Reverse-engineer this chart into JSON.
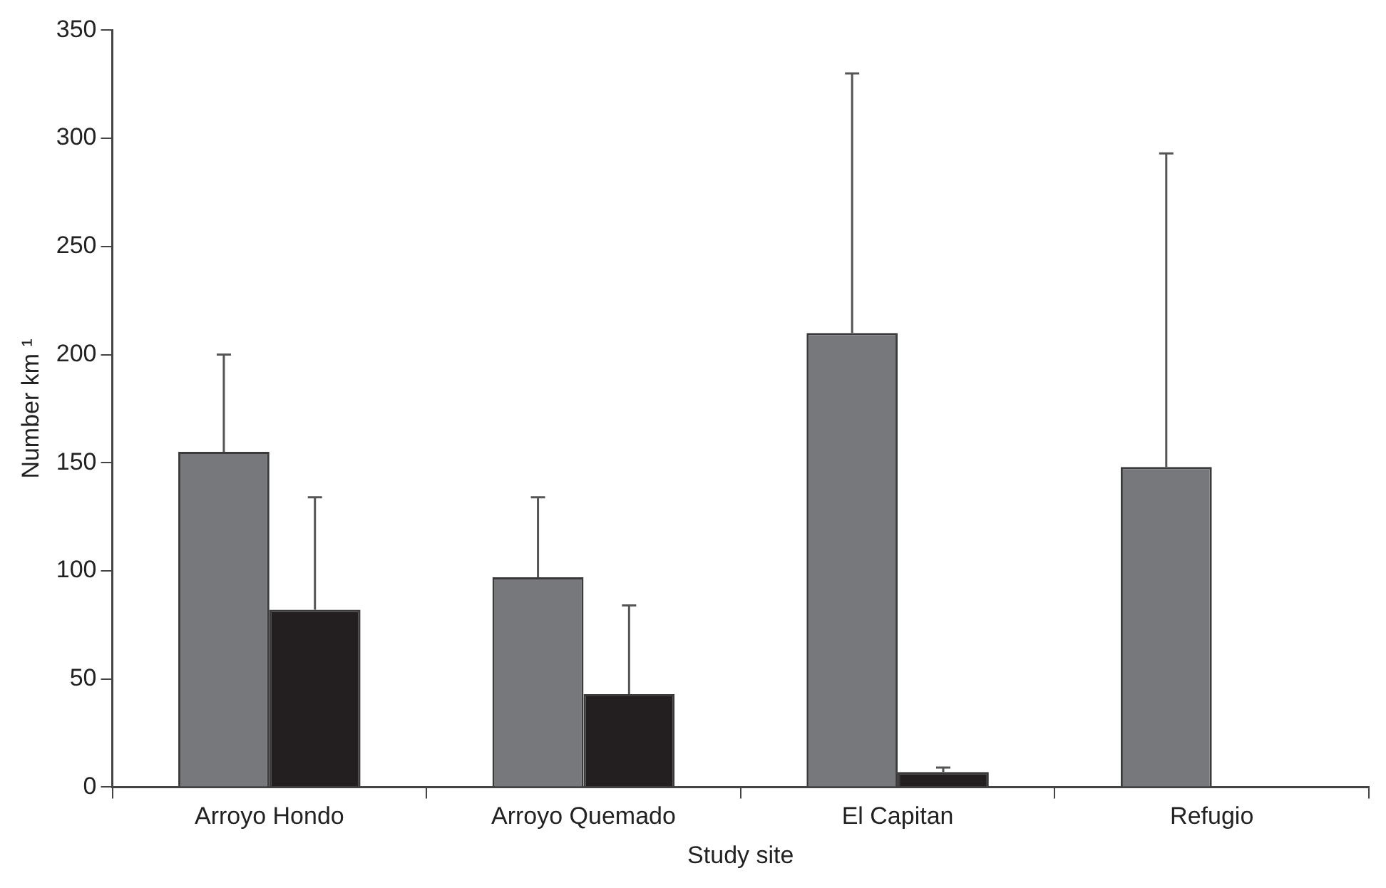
{
  "chart_data": {
    "type": "bar",
    "xlabel": "Study site",
    "ylabel": "Number km ¹",
    "categories": [
      "Arroyo Hondo",
      "Arroyo Quemado",
      "El Capitan",
      "Refugio"
    ],
    "series": [
      {
        "color": "#77787c",
        "values": [
          155,
          97,
          210,
          148
        ],
        "errors": [
          [
            155,
            200
          ],
          [
            97,
            134
          ],
          [
            210,
            330
          ],
          [
            148,
            293
          ]
        ]
      },
      {
        "color": "#231f20",
        "values": [
          82,
          43,
          7,
          null
        ],
        "errors": [
          [
            82,
            134
          ],
          [
            43,
            84
          ],
          [
            7,
            9
          ],
          null
        ]
      }
    ],
    "ylim": [
      0,
      350
    ],
    "yticks": [
      0,
      50,
      100,
      150,
      200,
      250,
      300,
      350
    ],
    "grid": false,
    "legend": false
  }
}
